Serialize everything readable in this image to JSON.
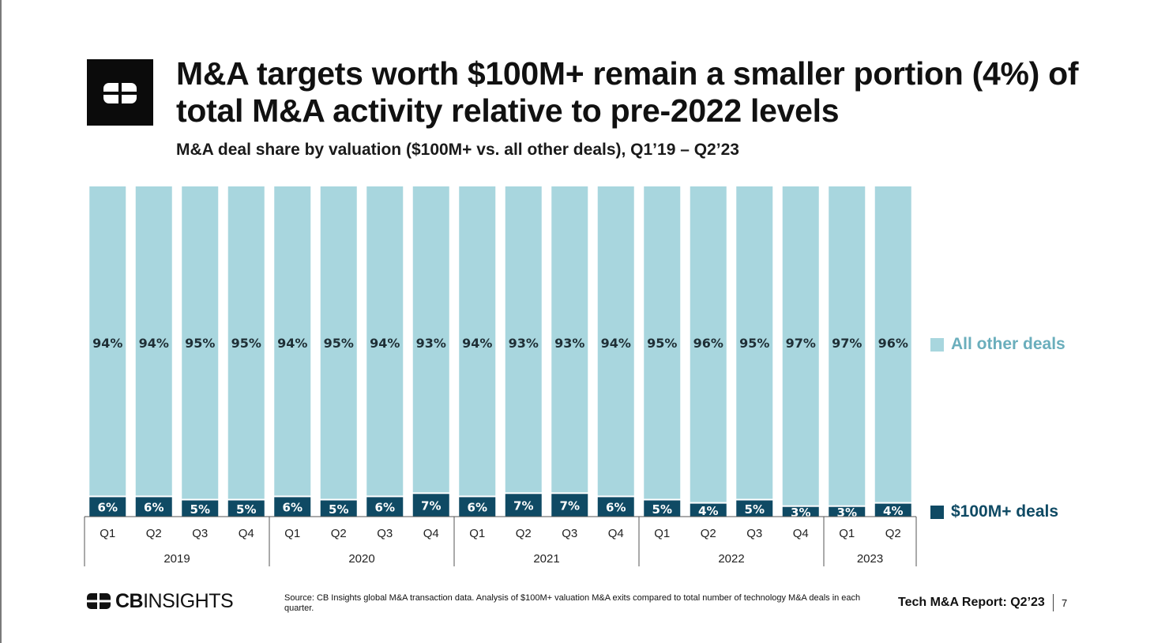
{
  "header": {
    "title": "M&A targets worth $100M+ remain a smaller portion (4%) of total M&A activity relative to pre-2022 levels",
    "subtitle": "M&A deal share by valuation ($100M+ vs. all other deals), Q1’19 – Q2’23"
  },
  "chart_data": {
    "type": "bar",
    "stacked": true,
    "categories": [
      "Q1",
      "Q2",
      "Q3",
      "Q4",
      "Q1",
      "Q2",
      "Q3",
      "Q4",
      "Q1",
      "Q2",
      "Q3",
      "Q4",
      "Q1",
      "Q2",
      "Q3",
      "Q4",
      "Q1",
      "Q2"
    ],
    "years": [
      {
        "label": "2019",
        "count": 4
      },
      {
        "label": "2020",
        "count": 4
      },
      {
        "label": "2021",
        "count": 4
      },
      {
        "label": "2022",
        "count": 4
      },
      {
        "label": "2023",
        "count": 2
      }
    ],
    "series": [
      {
        "name": "$100M+ deals",
        "color": "#0f4a64",
        "values": [
          6,
          6,
          5,
          5,
          6,
          5,
          6,
          7,
          6,
          7,
          7,
          6,
          5,
          4,
          5,
          3,
          3,
          4
        ]
      },
      {
        "name": "All other deals",
        "color": "#a8d6de",
        "values": [
          94,
          94,
          95,
          95,
          94,
          95,
          94,
          93,
          94,
          93,
          93,
          94,
          95,
          96,
          95,
          97,
          97,
          96
        ]
      }
    ],
    "value_suffix": "%",
    "ylim": [
      0,
      100
    ],
    "grid": false,
    "legend": "right"
  },
  "legend": {
    "other_label": "All other deals",
    "big_label": "$100M+ deals"
  },
  "footer": {
    "brand_bold": "CB",
    "brand_light": "INSIGHTS",
    "source": "Source: CB Insights global M&A transaction data. Analysis of $100M+ valuation M&A exits compared to total number of technology M&A deals in each quarter.",
    "report": "Tech M&A Report: Q2’23",
    "page": "7"
  }
}
